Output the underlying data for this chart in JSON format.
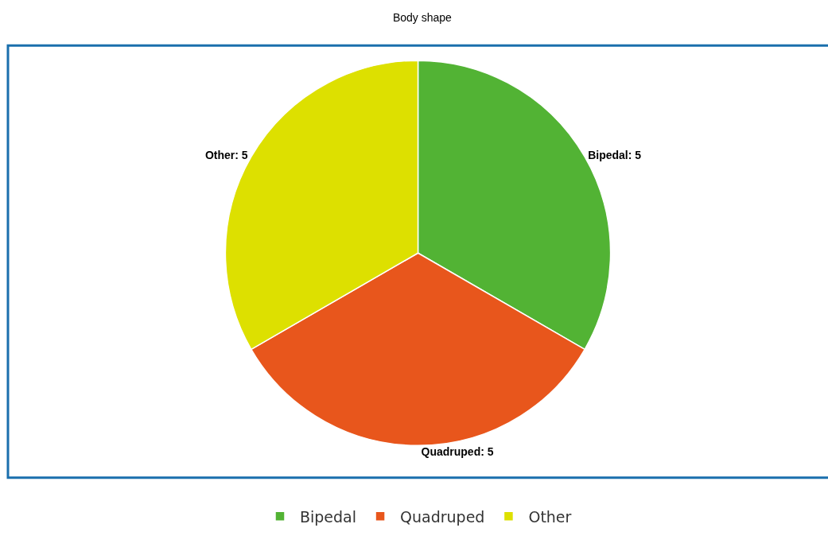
{
  "chart_data": {
    "type": "pie",
    "title": "Body shape",
    "categories": [
      "Bipedal",
      "Quadruped",
      "Other"
    ],
    "values": [
      5,
      5,
      5
    ],
    "colors": [
      "#52b334",
      "#e8561c",
      "#dde000"
    ],
    "value_labels": [
      "Bipedal: 5",
      "Quadruped: 5",
      "Other: 5"
    ],
    "legend": "bottom"
  }
}
